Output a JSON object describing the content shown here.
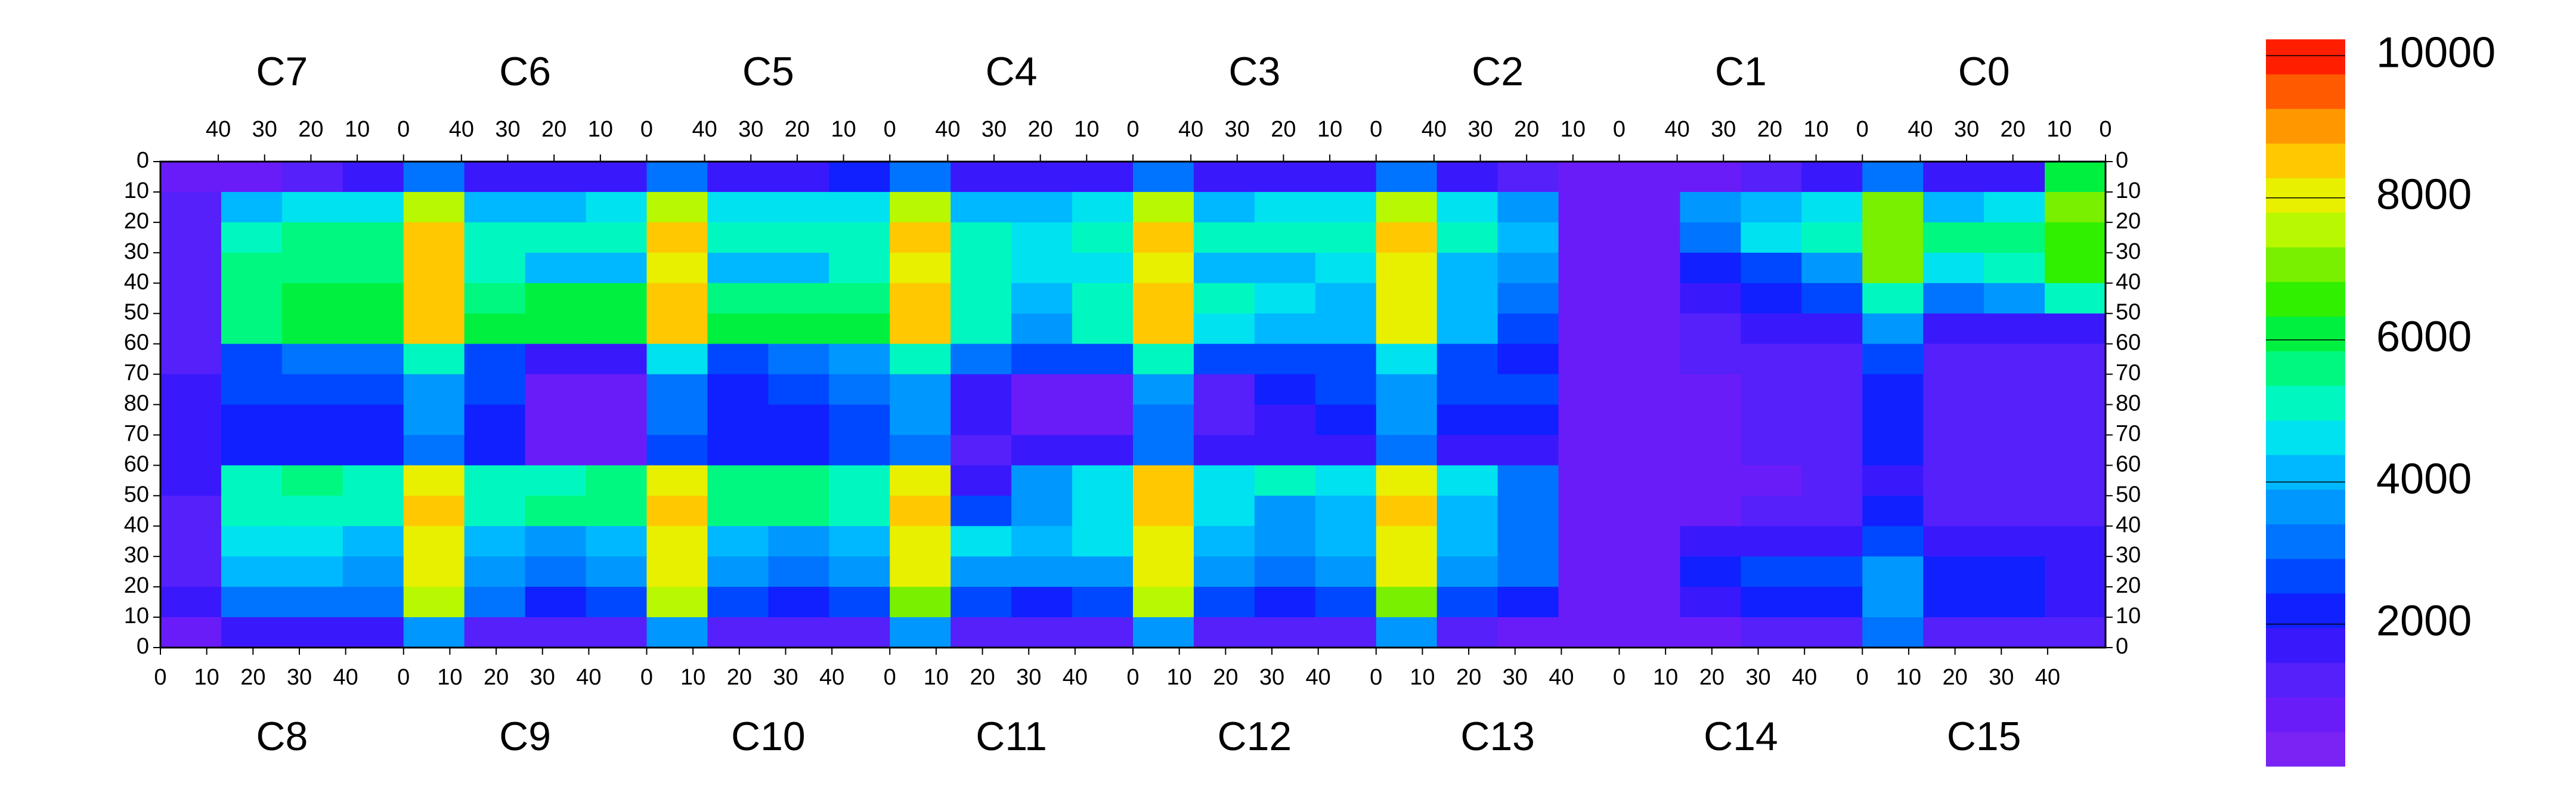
{
  "chart_data": {
    "type": "heatmap",
    "top_labels": [
      "C7",
      "C6",
      "C5",
      "C4",
      "C3",
      "C2",
      "C1",
      "C0"
    ],
    "bottom_labels": [
      "C8",
      "C9",
      "C10",
      "C11",
      "C12",
      "C13",
      "C14",
      "C15"
    ],
    "top_xlim": [
      52.5,
      0
    ],
    "bottom_xlim": [
      0,
      52.5
    ],
    "top_xticks": [
      40,
      30,
      20,
      10,
      0
    ],
    "bottom_xticks": [
      0,
      10,
      20,
      30,
      40
    ],
    "top_ylim": [
      0,
      80
    ],
    "bottom_ylim": [
      80,
      0
    ],
    "top_yticks": [
      0,
      10,
      20,
      30,
      40,
      50,
      60,
      70,
      80
    ],
    "bottom_yticks": [
      70,
      60,
      50,
      40,
      30,
      20,
      10,
      0
    ],
    "z": [
      [
        900,
        900,
        1200,
        1500,
        3000,
        1500,
        1500,
        1500,
        3000,
        1500,
        1500,
        2000,
        3000,
        1500,
        1500,
        1800,
        3000,
        1500,
        1500,
        1500,
        3000,
        1500,
        1200,
        600,
        600,
        800,
        1200,
        1500,
        3000,
        1500,
        1500,
        6000
      ],
      [
        1000,
        4000,
        4500,
        4500,
        7500,
        4000,
        4000,
        4500,
        7500,
        4500,
        4500,
        4500,
        7500,
        4000,
        4000,
        4500,
        7500,
        4000,
        4500,
        4500,
        7500,
        4500,
        3500,
        600,
        600,
        3500,
        4000,
        4500,
        7000,
        4000,
        4500,
        7000
      ],
      [
        1000,
        5000,
        5500,
        5500,
        8500,
        5000,
        5000,
        5000,
        8500,
        5000,
        5000,
        5000,
        8500,
        5000,
        4500,
        5000,
        8500,
        5000,
        5000,
        5000,
        8500,
        5000,
        4000,
        600,
        600,
        3000,
        4500,
        5000,
        7000,
        5500,
        5500,
        6500
      ],
      [
        1000,
        5500,
        5500,
        5500,
        8500,
        5000,
        4000,
        4000,
        8000,
        4000,
        4000,
        5000,
        8000,
        5000,
        4500,
        4500,
        8000,
        4000,
        4000,
        4500,
        8000,
        4000,
        3500,
        600,
        600,
        2000,
        2500,
        3500,
        7000,
        4500,
        5000,
        6500
      ],
      [
        1000,
        5500,
        6000,
        6000,
        8500,
        5500,
        6000,
        6000,
        8500,
        5500,
        5500,
        5500,
        8500,
        5000,
        4000,
        5000,
        8500,
        5000,
        4500,
        4000,
        8000,
        4000,
        3000,
        600,
        600,
        1500,
        2000,
        2500,
        5000,
        3000,
        3500,
        5000
      ],
      [
        1000,
        5500,
        6000,
        6000,
        8500,
        6000,
        6000,
        6000,
        8500,
        6000,
        6000,
        6000,
        8500,
        5000,
        3500,
        5000,
        8500,
        4500,
        4000,
        4000,
        8000,
        4000,
        2500,
        600,
        600,
        1200,
        1500,
        1500,
        3500,
        1500,
        1500,
        1500
      ],
      [
        1000,
        2500,
        3000,
        3000,
        5000,
        2500,
        1500,
        1500,
        4500,
        2500,
        3000,
        3500,
        5000,
        3000,
        2500,
        2500,
        5000,
        2500,
        2500,
        2500,
        4500,
        2500,
        2000,
        600,
        600,
        1000,
        1200,
        1200,
        2500,
        1200,
        1200,
        1200
      ],
      [
        1500,
        2500,
        2500,
        2500,
        3500,
        2500,
        800,
        800,
        3000,
        2000,
        2500,
        3000,
        3500,
        1500,
        800,
        800,
        3500,
        1000,
        2000,
        2500,
        3500,
        2500,
        2500,
        800,
        600,
        800,
        1000,
        1000,
        2000,
        1000,
        1000,
        1000
      ],
      [
        1500,
        2000,
        2000,
        2000,
        3500,
        2000,
        800,
        800,
        3000,
        2000,
        2000,
        2500,
        3500,
        1500,
        800,
        800,
        3000,
        1000,
        1500,
        2000,
        3500,
        2000,
        2000,
        800,
        800,
        800,
        1000,
        1000,
        2000,
        1000,
        1000,
        1000
      ],
      [
        1500,
        2000,
        2000,
        2000,
        3000,
        2000,
        800,
        800,
        2500,
        2000,
        2000,
        2500,
        3000,
        1200,
        1500,
        1500,
        3000,
        1500,
        1500,
        1500,
        3000,
        1500,
        1500,
        800,
        800,
        800,
        1000,
        1000,
        2000,
        1000,
        1000,
        1000
      ],
      [
        1500,
        5000,
        5500,
        5000,
        8000,
        5000,
        5000,
        5500,
        8000,
        5500,
        5500,
        5000,
        8000,
        1500,
        3500,
        4500,
        8500,
        4500,
        5000,
        4500,
        8000,
        4500,
        3000,
        600,
        800,
        800,
        800,
        1000,
        1500,
        1000,
        1000,
        1000
      ],
      [
        1000,
        5000,
        5000,
        5000,
        8500,
        5000,
        5500,
        5500,
        8500,
        5500,
        5500,
        5000,
        8500,
        2500,
        3500,
        4500,
        8500,
        4500,
        3500,
        4000,
        8500,
        4000,
        3000,
        600,
        800,
        800,
        1000,
        1000,
        2000,
        1000,
        1000,
        1000
      ],
      [
        1000,
        4500,
        4500,
        4000,
        8000,
        4000,
        3500,
        4000,
        8000,
        4000,
        3500,
        4000,
        8000,
        4500,
        4000,
        4500,
        8000,
        4000,
        3500,
        4000,
        8000,
        4000,
        3000,
        600,
        800,
        1500,
        1500,
        1500,
        2500,
        1500,
        1500,
        1500
      ],
      [
        1000,
        4000,
        4000,
        3500,
        8000,
        3500,
        3000,
        3500,
        8000,
        3500,
        3000,
        3500,
        8000,
        3500,
        3500,
        3500,
        8000,
        3500,
        3000,
        3500,
        8000,
        3500,
        3000,
        600,
        800,
        2000,
        2500,
        2500,
        3500,
        2000,
        2000,
        1500
      ],
      [
        1500,
        3000,
        3000,
        3000,
        7500,
        3000,
        2000,
        2500,
        7500,
        2500,
        2000,
        2500,
        7000,
        2500,
        2000,
        2500,
        7500,
        2500,
        2000,
        2500,
        7000,
        2500,
        2000,
        600,
        800,
        1500,
        2000,
        2000,
        3500,
        2000,
        2000,
        1500
      ],
      [
        900,
        1500,
        1500,
        1500,
        3500,
        1000,
        1000,
        1000,
        3500,
        1000,
        1000,
        1000,
        3500,
        1000,
        1000,
        1000,
        3500,
        1000,
        1000,
        1000,
        3500,
        1000,
        800,
        600,
        600,
        800,
        1000,
        1000,
        3000,
        1000,
        1000,
        1000
      ]
    ],
    "zlim": [
      0,
      10230
    ],
    "zticks": [
      2000,
      4000,
      6000,
      8000,
      10000
    ],
    "colors": [
      "#7b22f5",
      "#6a1cf8",
      "#5520fa",
      "#3a18fc",
      "#1020ff",
      "#0048ff",
      "#0074ff",
      "#0098ff",
      "#00b8ff",
      "#00e2f0",
      "#00f8c0",
      "#00f880",
      "#00f040",
      "#30f000",
      "#78f000",
      "#b8f800",
      "#e8f000",
      "#ffc800",
      "#ff9800",
      "#ff5a00",
      "#ff1e00"
    ]
  }
}
